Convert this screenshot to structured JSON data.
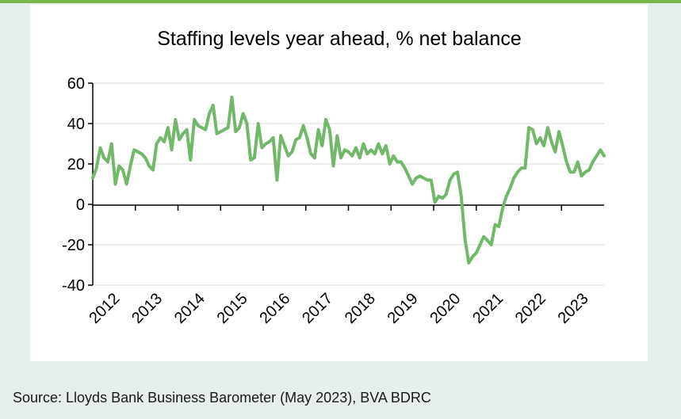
{
  "colors": {
    "accent": "#7ab648",
    "line": "#72b86a",
    "background": "#e6efea",
    "panel": "#ffffff"
  },
  "source": "Source: Lloyds Bank Business Barometer (May 2023), BVA BDRC",
  "chart_data": {
    "type": "line",
    "title": "Staffing levels year ahead, % net balance",
    "xlabel": "",
    "ylabel": "",
    "ylim": [
      -40,
      60
    ],
    "yticks": [
      60,
      40,
      20,
      0,
      -20,
      -40
    ],
    "ytick_labels": [
      "60",
      "40",
      "20",
      "0",
      "-20",
      "-40"
    ],
    "xticks": [
      "2012",
      "2013",
      "2014",
      "2015",
      "2016",
      "2017",
      "2018",
      "2019",
      "2020",
      "2021",
      "2022",
      "2023"
    ],
    "grid": "horizontal",
    "legend": "none",
    "series": [
      {
        "values": [
          13,
          18,
          28,
          23,
          21,
          30,
          10,
          19,
          17,
          10,
          19,
          27,
          26,
          25,
          23,
          19,
          17,
          30,
          33,
          31,
          38,
          27,
          42,
          32,
          35,
          37,
          22,
          42,
          39,
          38,
          37,
          45,
          49,
          35,
          36,
          37,
          38,
          53,
          36,
          38,
          45,
          40,
          22,
          23,
          40,
          28,
          30,
          31,
          33,
          12,
          34,
          29,
          24,
          26,
          32,
          33,
          39,
          33,
          25,
          23,
          37,
          29,
          42,
          37,
          19,
          34,
          23,
          27,
          26,
          24,
          28,
          23,
          30,
          25,
          27,
          25,
          30,
          25,
          29,
          20,
          24,
          21,
          21,
          18,
          14,
          10,
          13,
          14,
          13,
          12,
          12,
          1,
          4,
          3,
          5,
          12,
          15,
          16,
          4,
          -17,
          -29,
          -26,
          -24,
          -20,
          -16,
          -18,
          -20,
          -10,
          -11,
          -2,
          4,
          8,
          13,
          16,
          18,
          18,
          38,
          37,
          30,
          33,
          29,
          38,
          31,
          26,
          36,
          29,
          21,
          16,
          16,
          21,
          14,
          16,
          17,
          21,
          24,
          27,
          24
        ]
      }
    ]
  }
}
